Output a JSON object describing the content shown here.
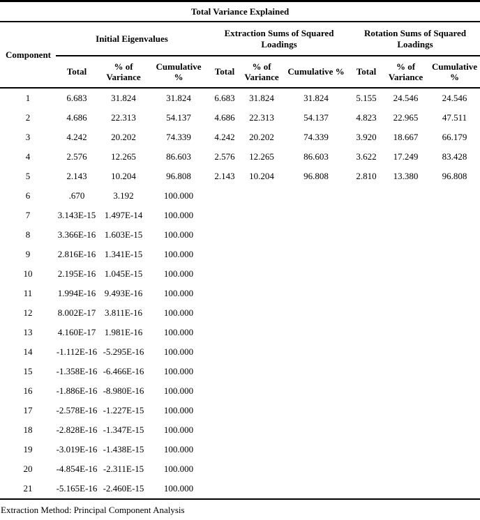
{
  "colors": {
    "text": "#000000",
    "background": "#ffffff",
    "rule": "#000000"
  },
  "table": {
    "title": "Total Variance Explained",
    "component_header": "Component",
    "groups": [
      {
        "label": "Initial Eigenvalues"
      },
      {
        "label": "Extraction Sums of Squared Loadings"
      },
      {
        "label": "Rotation Sums of Squared Loadings"
      }
    ],
    "sub_headers": [
      "Total",
      "% of Variance",
      "Cumulative %",
      "Total",
      "% of Variance",
      "Cumulative %",
      "Total",
      "% of Variance",
      "Cumulative %"
    ],
    "rows": [
      {
        "component": "1",
        "cells": [
          "6.683",
          "31.824",
          "31.824",
          "6.683",
          "31.824",
          "31.824",
          "5.155",
          "24.546",
          "24.546"
        ]
      },
      {
        "component": "2",
        "cells": [
          "4.686",
          "22.313",
          "54.137",
          "4.686",
          "22.313",
          "54.137",
          "4.823",
          "22.965",
          "47.511"
        ]
      },
      {
        "component": "3",
        "cells": [
          "4.242",
          "20.202",
          "74.339",
          "4.242",
          "20.202",
          "74.339",
          "3.920",
          "18.667",
          "66.179"
        ]
      },
      {
        "component": "4",
        "cells": [
          "2.576",
          "12.265",
          "86.603",
          "2.576",
          "12.265",
          "86.603",
          "3.622",
          "17.249",
          "83.428"
        ]
      },
      {
        "component": "5",
        "cells": [
          "2.143",
          "10.204",
          "96.808",
          "2.143",
          "10.204",
          "96.808",
          "2.810",
          "13.380",
          "96.808"
        ]
      },
      {
        "component": "6",
        "cells": [
          ".670",
          "3.192",
          "100.000"
        ]
      },
      {
        "component": "7",
        "cells": [
          "3.143E-15",
          "1.497E-14",
          "100.000"
        ]
      },
      {
        "component": "8",
        "cells": [
          "3.366E-16",
          "1.603E-15",
          "100.000"
        ]
      },
      {
        "component": "9",
        "cells": [
          "2.816E-16",
          "1.341E-15",
          "100.000"
        ]
      },
      {
        "component": "10",
        "cells": [
          "2.195E-16",
          "1.045E-15",
          "100.000"
        ]
      },
      {
        "component": "11",
        "cells": [
          "1.994E-16",
          "9.493E-16",
          "100.000"
        ]
      },
      {
        "component": "12",
        "cells": [
          "8.002E-17",
          "3.811E-16",
          "100.000"
        ]
      },
      {
        "component": "13",
        "cells": [
          "4.160E-17",
          "1.981E-16",
          "100.000"
        ]
      },
      {
        "component": "14",
        "cells": [
          "-1.112E-16",
          "-5.295E-16",
          "100.000"
        ]
      },
      {
        "component": "15",
        "cells": [
          "-1.358E-16",
          "-6.466E-16",
          "100.000"
        ]
      },
      {
        "component": "16",
        "cells": [
          "-1.886E-16",
          "-8.980E-16",
          "100.000"
        ]
      },
      {
        "component": "17",
        "cells": [
          "-2.578E-16",
          "-1.227E-15",
          "100.000"
        ]
      },
      {
        "component": "18",
        "cells": [
          "-2.828E-16",
          "-1.347E-15",
          "100.000"
        ]
      },
      {
        "component": "19",
        "cells": [
          "-3.019E-16",
          "-1.438E-15",
          "100.000"
        ]
      },
      {
        "component": "20",
        "cells": [
          "-4.854E-16",
          "-2.311E-15",
          "100.000"
        ]
      },
      {
        "component": "21",
        "cells": [
          "-5.165E-16",
          "-2.460E-15",
          "100.000"
        ]
      }
    ],
    "footer": "Extraction Method: Principal Component Analysis"
  }
}
